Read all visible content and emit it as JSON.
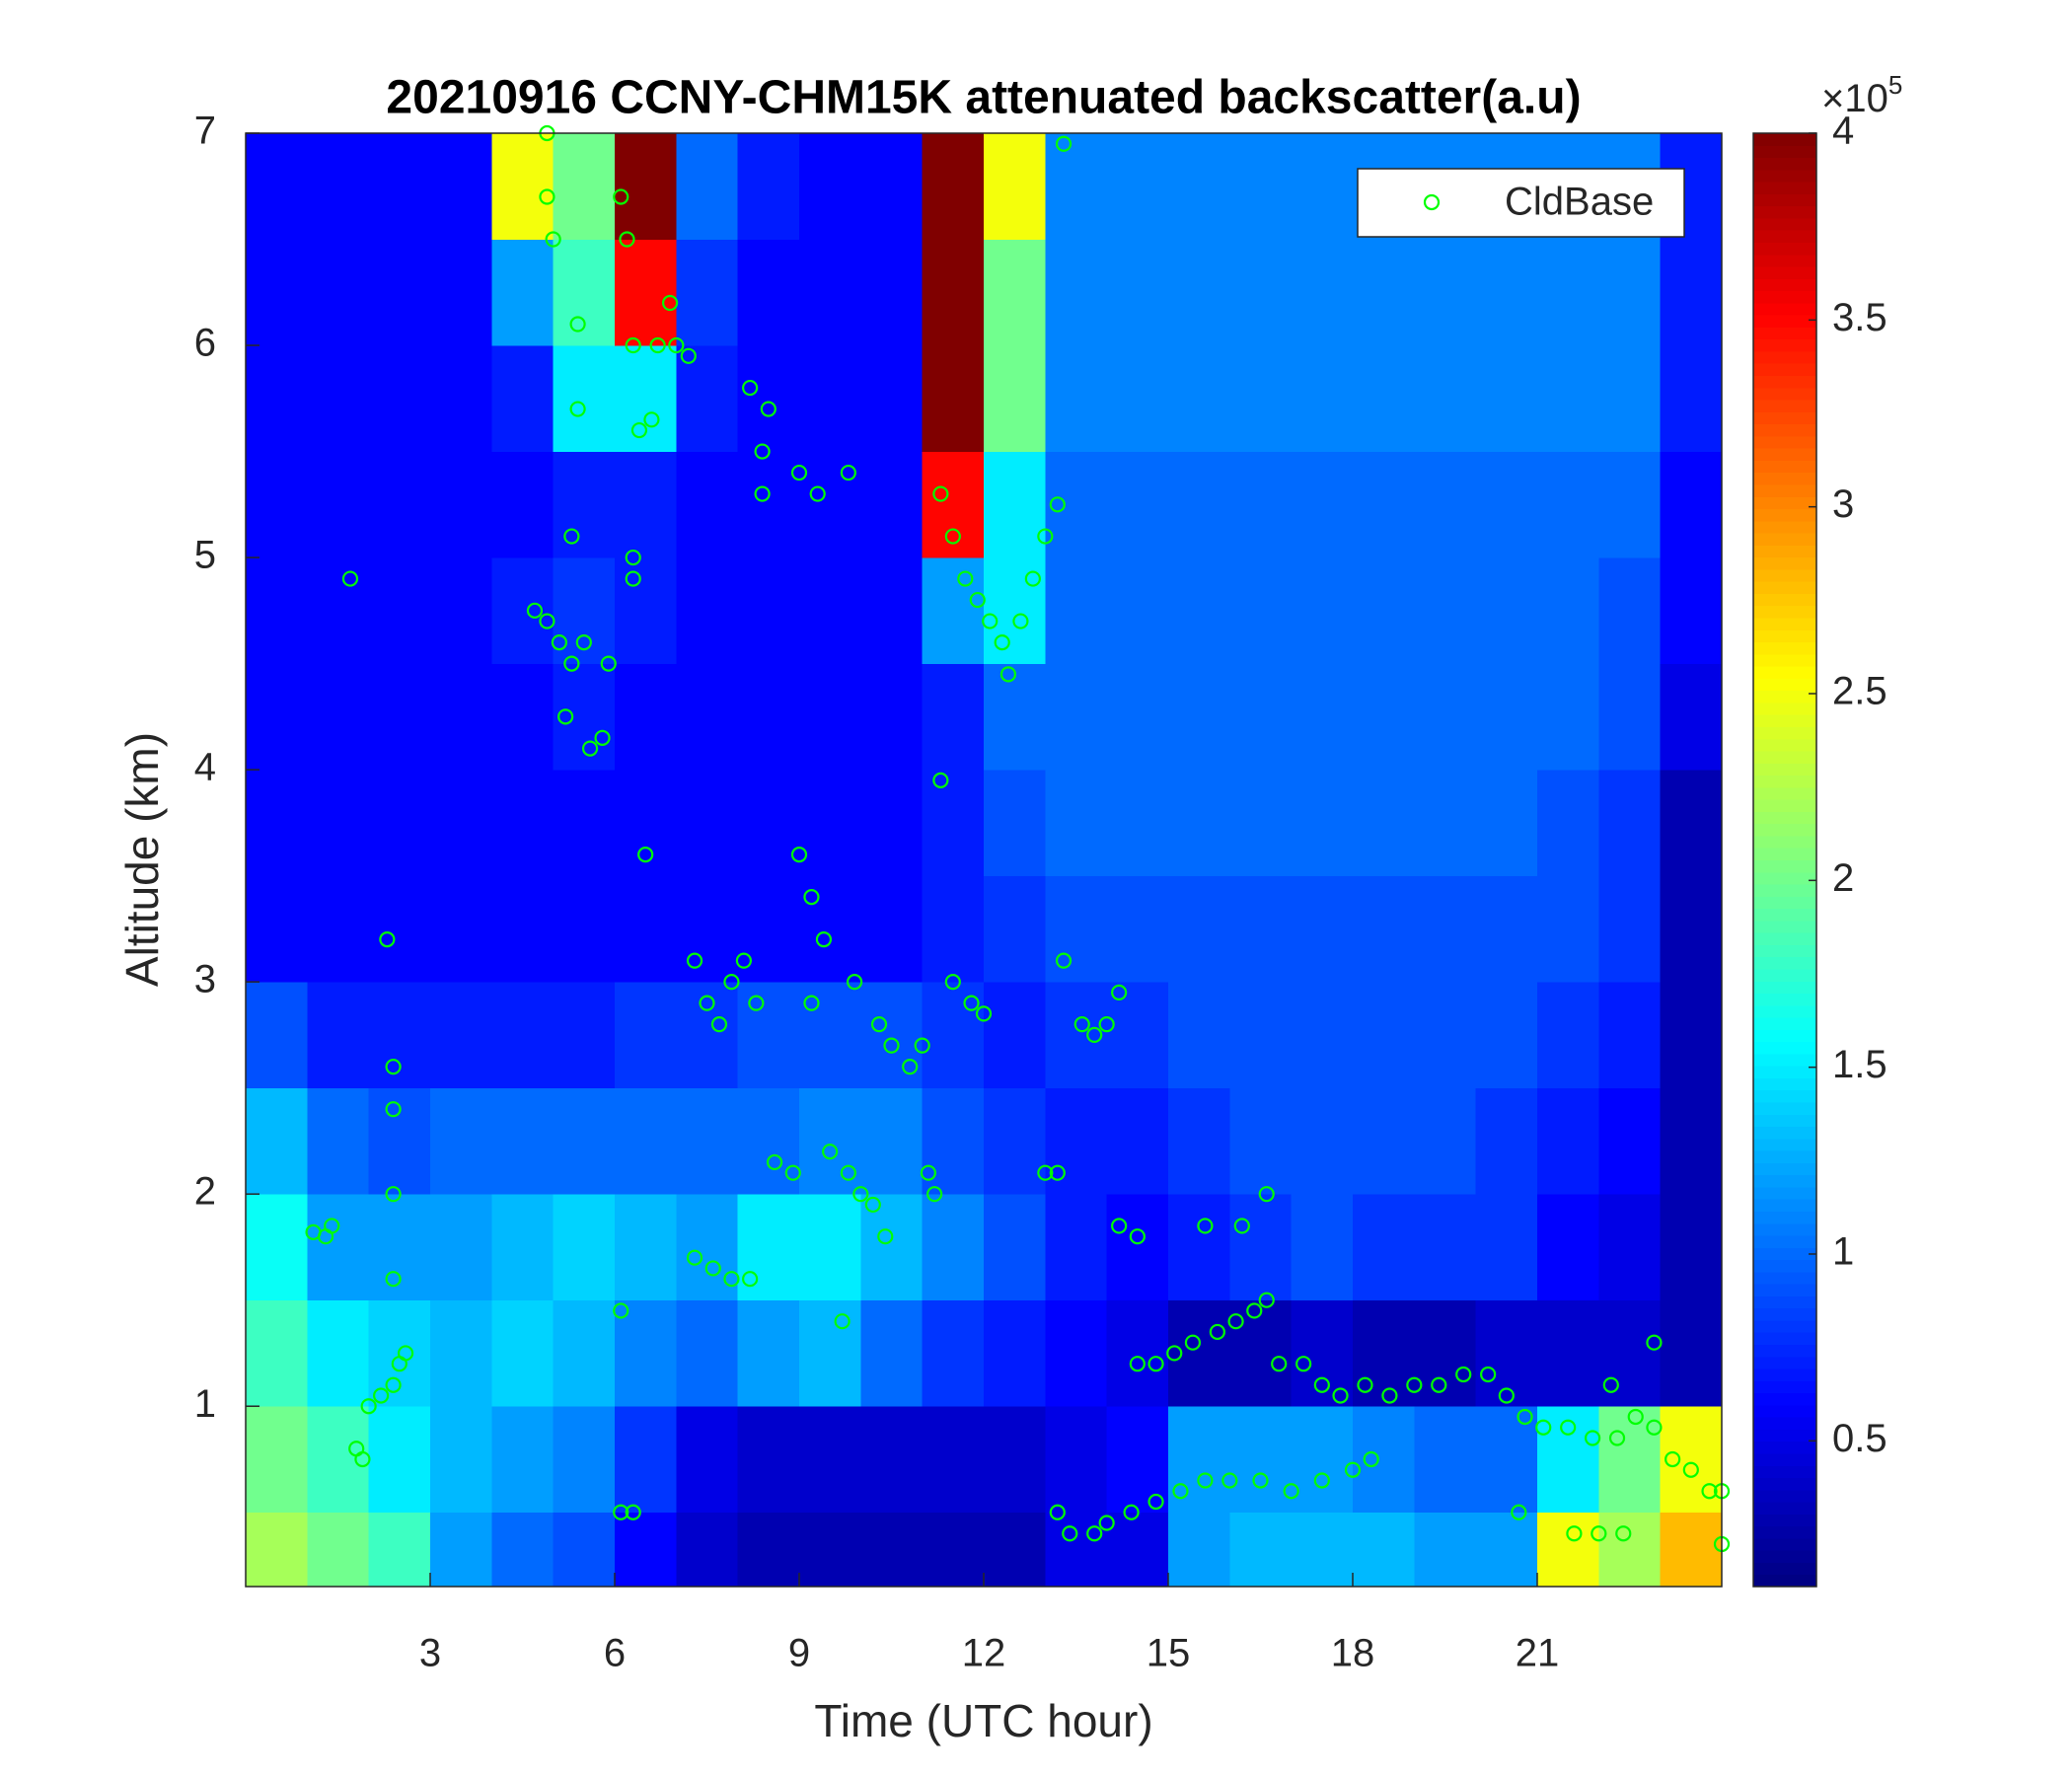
{
  "chart_data": {
    "type": "heatmap",
    "title": "20210916 CCNY-CHM15K attenuated backscatter(a.u)",
    "x_label": "Time (UTC hour)",
    "y_label": "Altitude (km)",
    "xlim": [
      0,
      24
    ],
    "ylim": [
      0.15,
      7
    ],
    "xticks": [
      3,
      6,
      9,
      12,
      15,
      18,
      21
    ],
    "yticks": [
      1,
      2,
      3,
      4,
      5,
      6,
      7
    ],
    "colormap": "jet",
    "clim": [
      0.11,
      4
    ],
    "colorbar_ticks": [
      0.5,
      1,
      1.5,
      2,
      2.5,
      3,
      3.5,
      4
    ],
    "colorbar_multiplier": {
      "base": "×10",
      "exponent": "5"
    },
    "legend_position": "upper-right",
    "x_edges": [
      0,
      1,
      2,
      3,
      4,
      5,
      6,
      7,
      8,
      9,
      10,
      11,
      12,
      13,
      14,
      15,
      16,
      17,
      18,
      19,
      20,
      21,
      22,
      23,
      24
    ],
    "y_edges": [
      0.15,
      0.5,
      1,
      1.5,
      2,
      2.5,
      3,
      3.5,
      4,
      4.5,
      5,
      5.5,
      6,
      6.5,
      7
    ],
    "z": [
      [
        2.2,
        2.0,
        1.8,
        1.2,
        1.0,
        0.9,
        0.6,
        0.4,
        0.3,
        0.3,
        0.3,
        0.3,
        0.3,
        0.5,
        0.5,
        1.2,
        1.3,
        1.3,
        1.3,
        1.2,
        1.2,
        2.5,
        2.2,
        2.8
      ],
      [
        2.0,
        1.8,
        1.5,
        1.3,
        1.2,
        1.1,
        0.8,
        0.5,
        0.4,
        0.4,
        0.4,
        0.4,
        0.4,
        0.5,
        0.6,
        1.2,
        1.2,
        1.2,
        1.1,
        1.0,
        1.0,
        1.5,
        2.0,
        2.5
      ],
      [
        1.8,
        1.5,
        1.4,
        1.3,
        1.4,
        1.3,
        1.1,
        1.0,
        1.2,
        1.3,
        1.0,
        0.8,
        0.7,
        0.6,
        0.5,
        0.3,
        0.3,
        0.4,
        0.3,
        0.3,
        0.4,
        0.4,
        0.4,
        0.3
      ],
      [
        1.6,
        1.2,
        1.2,
        1.2,
        1.3,
        1.4,
        1.3,
        1.2,
        1.5,
        1.5,
        1.3,
        1.1,
        0.9,
        0.7,
        0.6,
        0.7,
        0.8,
        0.9,
        0.8,
        0.8,
        0.8,
        0.6,
        0.5,
        0.3
      ],
      [
        1.3,
        1.0,
        0.9,
        1.0,
        1.0,
        1.0,
        1.0,
        1.0,
        1.0,
        1.1,
        1.1,
        0.9,
        0.8,
        0.7,
        0.7,
        0.8,
        0.9,
        0.9,
        0.9,
        0.9,
        0.8,
        0.7,
        0.6,
        0.3
      ],
      [
        0.9,
        0.7,
        0.7,
        0.7,
        0.7,
        0.7,
        0.8,
        0.8,
        0.9,
        0.9,
        0.9,
        0.8,
        0.7,
        0.8,
        0.8,
        0.9,
        0.9,
        0.9,
        0.9,
        0.9,
        0.9,
        0.8,
        0.7,
        0.3
      ],
      [
        0.6,
        0.6,
        0.6,
        0.6,
        0.6,
        0.6,
        0.6,
        0.6,
        0.6,
        0.6,
        0.6,
        0.7,
        0.8,
        0.9,
        0.9,
        0.9,
        0.9,
        0.9,
        0.9,
        0.9,
        0.9,
        0.9,
        0.8,
        0.3
      ],
      [
        0.6,
        0.6,
        0.6,
        0.6,
        0.6,
        0.6,
        0.6,
        0.6,
        0.6,
        0.6,
        0.6,
        0.7,
        0.9,
        1.0,
        1.0,
        1.0,
        1.0,
        1.0,
        1.0,
        1.0,
        1.0,
        0.9,
        0.8,
        0.3
      ],
      [
        0.6,
        0.6,
        0.6,
        0.6,
        0.6,
        0.7,
        0.6,
        0.6,
        0.6,
        0.6,
        0.6,
        0.7,
        1.0,
        1.0,
        1.0,
        1.0,
        1.0,
        1.0,
        1.0,
        1.0,
        1.0,
        1.0,
        0.9,
        0.5
      ],
      [
        0.6,
        0.6,
        0.6,
        0.6,
        0.7,
        0.8,
        0.7,
        0.6,
        0.6,
        0.6,
        0.6,
        1.2,
        1.5,
        1.0,
        1.0,
        1.0,
        1.0,
        1.0,
        1.0,
        1.0,
        1.0,
        1.0,
        0.9,
        0.6
      ],
      [
        0.6,
        0.6,
        0.6,
        0.6,
        0.6,
        0.7,
        0.7,
        0.6,
        0.6,
        0.6,
        0.6,
        3.5,
        1.5,
        1.0,
        1.0,
        1.0,
        1.0,
        1.0,
        1.0,
        1.0,
        1.0,
        1.0,
        1.0,
        0.6
      ],
      [
        0.6,
        0.6,
        0.6,
        0.6,
        0.7,
        1.5,
        1.5,
        0.7,
        0.6,
        0.6,
        0.6,
        4.0,
        2.0,
        1.1,
        1.1,
        1.1,
        1.1,
        1.1,
        1.1,
        1.1,
        1.1,
        1.1,
        1.1,
        0.7
      ],
      [
        0.6,
        0.6,
        0.6,
        0.6,
        1.2,
        1.8,
        3.5,
        0.8,
        0.6,
        0.6,
        0.6,
        4.0,
        2.0,
        1.1,
        1.1,
        1.1,
        1.1,
        1.1,
        1.1,
        1.1,
        1.1,
        1.1,
        1.1,
        0.7
      ],
      [
        0.6,
        0.6,
        0.6,
        0.6,
        2.5,
        2.0,
        4.0,
        1.0,
        0.7,
        0.6,
        0.6,
        4.0,
        2.5,
        1.1,
        1.1,
        1.1,
        1.1,
        1.1,
        1.1,
        1.1,
        1.1,
        1.1,
        1.1,
        0.7
      ]
    ],
    "series": [
      {
        "name": "CldBase",
        "color": "#00ff00",
        "x": [
          1.7,
          1.1,
          1.3,
          1.4,
          1.8,
          1.9,
          2.0,
          2.2,
          2.4,
          2.5,
          2.6,
          2.4,
          2.4,
          2.4,
          2.4,
          2.3,
          4.9,
          4.9,
          5.0,
          4.7,
          4.9,
          5.1,
          5.3,
          5.5,
          5.6,
          5.8,
          5.9,
          5.2,
          5.3,
          5.4,
          5.4,
          6.1,
          6.2,
          6.3,
          6.4,
          6.6,
          6.7,
          6.9,
          7.0,
          7.2,
          6.3,
          6.3,
          6.5,
          6.1,
          6.1,
          6.3,
          7.3,
          7.5,
          7.7,
          7.9,
          8.1,
          8.3,
          8.2,
          8.4,
          8.5,
          8.4,
          7.3,
          7.6,
          7.9,
          8.2,
          8.6,
          8.9,
          9.0,
          9.2,
          9.4,
          9.2,
          9.5,
          9.8,
          10.0,
          10.2,
          10.4,
          9.7,
          9.0,
          9.3,
          9.8,
          9.9,
          10.3,
          10.5,
          10.8,
          11.0,
          11.2,
          11.1,
          11.3,
          11.5,
          11.7,
          11.9,
          12.1,
          12.3,
          12.4,
          12.6,
          12.8,
          13.0,
          13.2,
          13.3,
          11.3,
          11.5,
          11.8,
          12.0,
          13.0,
          13.2,
          13.3,
          13.2,
          13.4,
          13.8,
          14.0,
          13.6,
          13.8,
          14.0,
          14.2,
          14.2,
          14.5,
          15.6,
          14.4,
          14.5,
          14.8,
          15.1,
          15.4,
          15.8,
          16.1,
          16.4,
          16.6,
          14.8,
          15.2,
          15.6,
          16.0,
          16.5,
          17.0,
          17.5,
          18.0,
          18.3,
          16.2,
          16.6,
          16.8,
          17.2,
          17.5,
          17.8,
          18.2,
          18.6,
          19.0,
          19.4,
          19.8,
          20.2,
          20.5,
          20.8,
          21.1,
          21.5,
          21.9,
          22.3,
          22.6,
          22.9,
          23.2,
          23.5,
          23.8,
          24.0,
          20.7,
          21.6,
          22.0,
          22.4,
          22.2,
          22.9,
          24.0
        ],
        "values": [
          4.9,
          1.82,
          1.8,
          1.85,
          0.8,
          0.75,
          1.0,
          1.05,
          1.1,
          1.2,
          1.25,
          1.6,
          2.0,
          2.4,
          2.6,
          3.2,
          7.0,
          6.7,
          6.5,
          4.75,
          4.7,
          4.6,
          4.5,
          4.6,
          4.1,
          4.15,
          4.5,
          4.25,
          5.1,
          5.7,
          6.1,
          6.7,
          6.5,
          6.0,
          5.6,
          5.65,
          6.0,
          6.2,
          6.0,
          5.95,
          5.0,
          4.9,
          3.6,
          1.45,
          0.5,
          0.5,
          3.1,
          2.9,
          2.8,
          3.0,
          3.1,
          2.9,
          5.8,
          5.5,
          5.7,
          5.3,
          1.7,
          1.65,
          1.6,
          1.6,
          2.15,
          2.1,
          3.6,
          3.4,
          3.2,
          2.9,
          2.2,
          2.1,
          2.0,
          1.95,
          1.8,
          1.4,
          5.4,
          5.3,
          5.4,
          3.0,
          2.8,
          2.7,
          2.6,
          2.7,
          2.0,
          2.1,
          5.3,
          5.1,
          4.9,
          4.8,
          4.7,
          4.6,
          4.45,
          4.7,
          4.9,
          5.1,
          5.25,
          6.95,
          3.95,
          3.0,
          2.9,
          2.85,
          2.1,
          2.1,
          3.1,
          0.5,
          0.4,
          0.4,
          0.45,
          2.8,
          2.75,
          2.8,
          2.95,
          1.85,
          1.8,
          1.85,
          0.5,
          1.2,
          1.2,
          1.25,
          1.3,
          1.35,
          1.4,
          1.45,
          1.5,
          0.55,
          0.6,
          0.65,
          0.65,
          0.65,
          0.6,
          0.65,
          0.7,
          0.75,
          1.85,
          2.0,
          1.2,
          1.2,
          1.1,
          1.05,
          1.1,
          1.05,
          1.1,
          1.1,
          1.15,
          1.15,
          1.05,
          0.95,
          0.9,
          0.9,
          0.85,
          0.85,
          0.95,
          0.9,
          0.75,
          0.7,
          0.6,
          0.6,
          0.5,
          0.4,
          0.4,
          0.4,
          1.1,
          1.3,
          0.35
        ]
      }
    ]
  }
}
